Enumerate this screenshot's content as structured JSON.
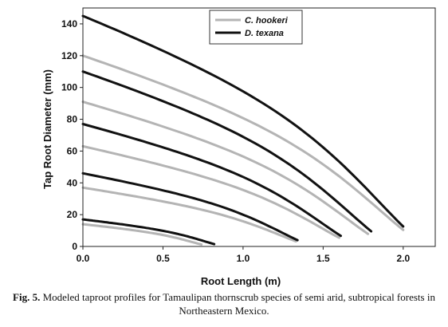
{
  "chart_data": {
    "type": "line",
    "title": "",
    "xlabel": "Root Length (m)",
    "ylabel": "Tap Root Diameter (mm)",
    "xlim": [
      0,
      2.2
    ],
    "ylim": [
      0,
      150
    ],
    "xticks": [
      "0.0",
      "0.5",
      "1.0",
      "1.5",
      "2.0"
    ],
    "yticks": [
      "0",
      "20",
      "40",
      "60",
      "80",
      "100",
      "120",
      "140"
    ],
    "grid": false,
    "legend_position": "top-center",
    "series": [
      {
        "name": "C. hookeri",
        "color": "#b4b4b4",
        "curves": [
          {
            "d0": 14,
            "lmax": 0.74
          },
          {
            "d0": 37,
            "lmax": 1.33
          },
          {
            "d0": 63,
            "lmax": 1.6
          },
          {
            "d0": 91,
            "lmax": 1.78
          },
          {
            "d0": 120,
            "lmax": 2.0
          }
        ]
      },
      {
        "name": "D. texana",
        "color": "#111111",
        "curves": [
          {
            "d0": 17,
            "lmax": 0.82
          },
          {
            "d0": 46,
            "lmax": 1.34
          },
          {
            "d0": 77,
            "lmax": 1.61
          },
          {
            "d0": 110,
            "lmax": 1.8
          },
          {
            "d0": 145,
            "lmax": 2.0
          }
        ]
      }
    ]
  },
  "caption": {
    "label": "Fig. 5.",
    "text": " Modeled taproot profiles for Tamaulipan thornscrub species of semi arid, subtropical forests in Northeastern Mexico."
  }
}
